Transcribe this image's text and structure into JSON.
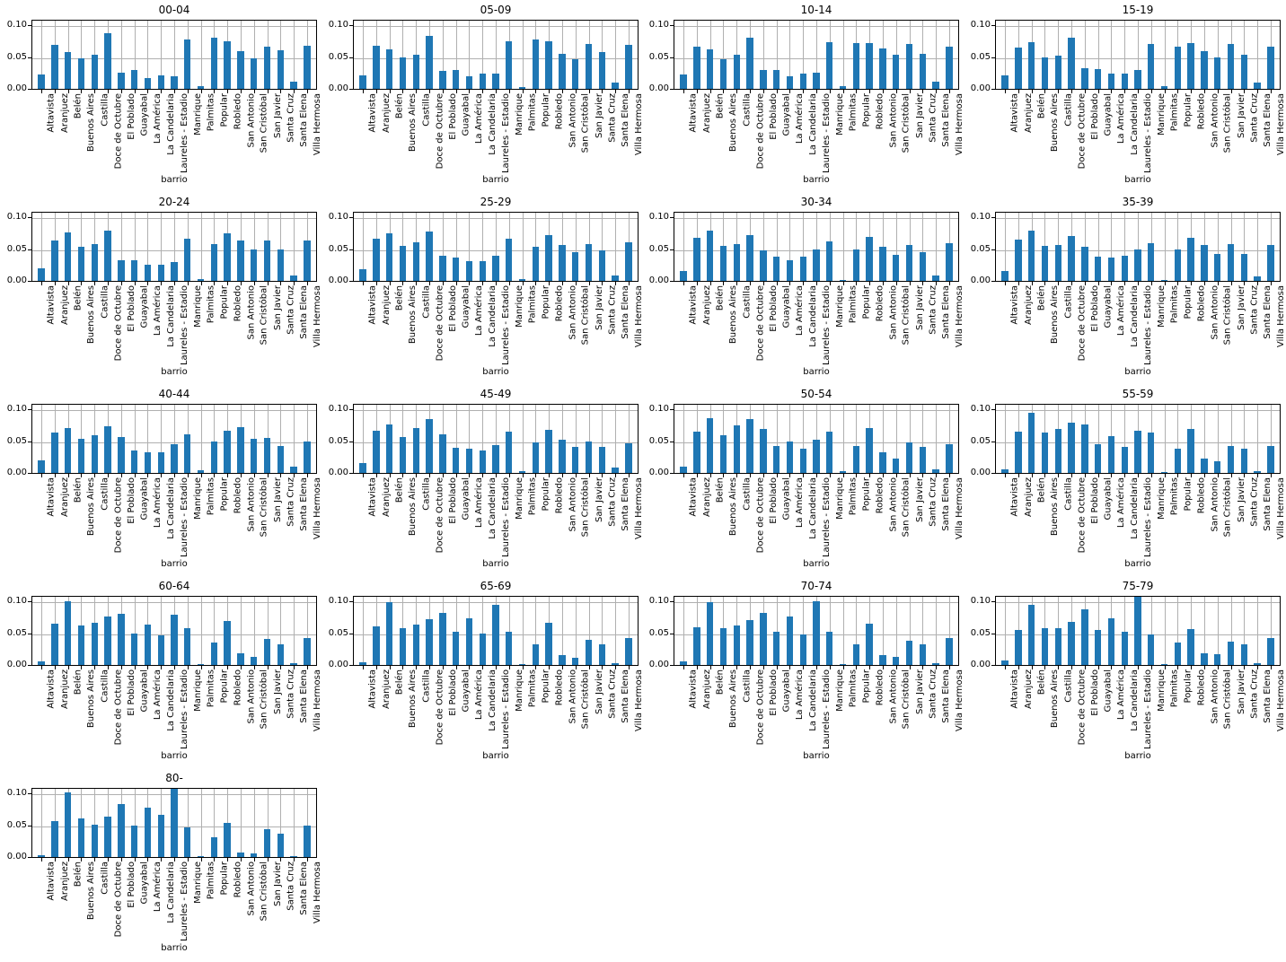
{
  "figure": {
    "xlabel": "barrio",
    "ylim": [
      0,
      0.11
    ],
    "yticks": [
      {
        "value": 0.0,
        "label": "0.00"
      },
      {
        "value": 0.05,
        "label": "0.05"
      },
      {
        "value": 0.1,
        "label": "0.10"
      }
    ],
    "bar_color": "#1f77b4",
    "grid_color": "#b0b0b0"
  },
  "chart_data": {
    "type": "bar",
    "layout": "grid 5 rows x 4 cols (17 subplots)",
    "grid": true,
    "xlabel": "barrio",
    "ylabel": "",
    "ylim": [
      0,
      0.11
    ],
    "categories": [
      "Altavista",
      "Aranjuez",
      "Belén",
      "Buenos Aires",
      "Castilla",
      "Doce de Octubre",
      "El Poblado",
      "Guayabal",
      "La América",
      "La Candelaria",
      "Laureles - Estadio",
      "Manrique",
      "Palmitas",
      "Popular",
      "Robledo",
      "San Antonio",
      "San Cristóbal",
      "San Javier",
      "Santa Cruz",
      "Santa Elena",
      "Villa Hermosa"
    ],
    "subplots": [
      {
        "title": "00-04",
        "values": [
          0.022,
          0.069,
          0.058,
          0.048,
          0.054,
          0.088,
          0.025,
          0.029,
          0.017,
          0.021,
          0.02,
          0.078,
          0.004,
          0.081,
          0.075,
          0.059,
          0.048,
          0.066,
          0.061,
          0.011,
          0.068
        ]
      },
      {
        "title": "05-09",
        "values": [
          0.021,
          0.068,
          0.062,
          0.05,
          0.054,
          0.083,
          0.028,
          0.03,
          0.02,
          0.024,
          0.024,
          0.075,
          0.003,
          0.078,
          0.075,
          0.055,
          0.047,
          0.071,
          0.058,
          0.01,
          0.069
        ]
      },
      {
        "title": "10-14",
        "values": [
          0.022,
          0.067,
          0.062,
          0.047,
          0.054,
          0.081,
          0.03,
          0.03,
          0.02,
          0.024,
          0.025,
          0.074,
          0.004,
          0.072,
          0.072,
          0.063,
          0.054,
          0.071,
          0.055,
          0.011,
          0.067
        ]
      },
      {
        "title": "15-19",
        "values": [
          0.021,
          0.065,
          0.074,
          0.05,
          0.052,
          0.08,
          0.032,
          0.031,
          0.024,
          0.024,
          0.03,
          0.07,
          0.004,
          0.067,
          0.072,
          0.059,
          0.05,
          0.07,
          0.054,
          0.01,
          0.067
        ]
      },
      {
        "title": "20-24",
        "values": [
          0.02,
          0.063,
          0.076,
          0.053,
          0.058,
          0.079,
          0.033,
          0.033,
          0.026,
          0.025,
          0.029,
          0.066,
          0.003,
          0.058,
          0.075,
          0.063,
          0.049,
          0.063,
          0.049,
          0.009,
          0.063
        ]
      },
      {
        "title": "25-29",
        "values": [
          0.019,
          0.066,
          0.075,
          0.055,
          0.061,
          0.078,
          0.039,
          0.036,
          0.031,
          0.031,
          0.039,
          0.067,
          0.003,
          0.054,
          0.072,
          0.056,
          0.045,
          0.058,
          0.048,
          0.009,
          0.061
        ]
      },
      {
        "title": "30-34",
        "values": [
          0.016,
          0.068,
          0.079,
          0.055,
          0.058,
          0.072,
          0.048,
          0.038,
          0.033,
          0.038,
          0.05,
          0.062,
          0.002,
          0.05,
          0.069,
          0.053,
          0.041,
          0.056,
          0.045,
          0.009,
          0.059
        ]
      },
      {
        "title": "35-39",
        "values": [
          0.016,
          0.065,
          0.079,
          0.055,
          0.056,
          0.071,
          0.053,
          0.038,
          0.036,
          0.039,
          0.05,
          0.059,
          0.002,
          0.05,
          0.068,
          0.056,
          0.042,
          0.058,
          0.043,
          0.007,
          0.056
        ]
      },
      {
        "title": "40-44",
        "values": [
          0.02,
          0.063,
          0.071,
          0.053,
          0.059,
          0.073,
          0.056,
          0.035,
          0.033,
          0.033,
          0.045,
          0.06,
          0.004,
          0.05,
          0.066,
          0.072,
          0.053,
          0.055,
          0.042,
          0.01,
          0.05
        ]
      },
      {
        "title": "45-49",
        "values": [
          0.016,
          0.066,
          0.076,
          0.056,
          0.071,
          0.084,
          0.061,
          0.039,
          0.038,
          0.035,
          0.044,
          0.065,
          0.003,
          0.048,
          0.068,
          0.052,
          0.041,
          0.05,
          0.041,
          0.009,
          0.046
        ]
      },
      {
        "title": "50-54",
        "values": [
          0.01,
          0.065,
          0.086,
          0.059,
          0.075,
          0.085,
          0.069,
          0.042,
          0.049,
          0.038,
          0.052,
          0.065,
          0.003,
          0.043,
          0.07,
          0.032,
          0.023,
          0.048,
          0.041,
          0.006,
          0.045
        ]
      },
      {
        "title": "55-59",
        "values": [
          0.006,
          0.065,
          0.095,
          0.063,
          0.069,
          0.079,
          0.076,
          0.045,
          0.058,
          0.041,
          0.066,
          0.063,
          0.002,
          0.038,
          0.069,
          0.023,
          0.019,
          0.043,
          0.038,
          0.003,
          0.043
        ]
      },
      {
        "title": "60-64",
        "values": [
          0.006,
          0.065,
          0.1,
          0.062,
          0.066,
          0.076,
          0.08,
          0.049,
          0.063,
          0.046,
          0.079,
          0.058,
          0.002,
          0.035,
          0.069,
          0.019,
          0.013,
          0.041,
          0.033,
          0.003,
          0.043
        ]
      },
      {
        "title": "65-69",
        "values": [
          0.004,
          0.06,
          0.099,
          0.058,
          0.063,
          0.072,
          0.082,
          0.052,
          0.073,
          0.049,
          0.095,
          0.052,
          0.002,
          0.033,
          0.066,
          0.016,
          0.012,
          0.039,
          0.033,
          0.003,
          0.043
        ]
      },
      {
        "title": "70-74",
        "values": [
          0.006,
          0.059,
          0.099,
          0.058,
          0.062,
          0.071,
          0.082,
          0.052,
          0.076,
          0.048,
          0.1,
          0.052,
          0.002,
          0.032,
          0.065,
          0.016,
          0.013,
          0.038,
          0.033,
          0.003,
          0.043
        ]
      },
      {
        "title": "75-79",
        "values": [
          0.007,
          0.055,
          0.094,
          0.058,
          0.058,
          0.068,
          0.088,
          0.055,
          0.074,
          0.052,
          0.111,
          0.048,
          0.002,
          0.035,
          0.057,
          0.019,
          0.017,
          0.036,
          0.032,
          0.003,
          0.042
        ]
      },
      {
        "title": "80-",
        "values": [
          0.003,
          0.057,
          0.102,
          0.06,
          0.051,
          0.063,
          0.083,
          0.049,
          0.077,
          0.066,
          0.112,
          0.047,
          0.001,
          0.031,
          0.054,
          0.007,
          0.006,
          0.044,
          0.036,
          0.001,
          0.049
        ]
      }
    ]
  }
}
